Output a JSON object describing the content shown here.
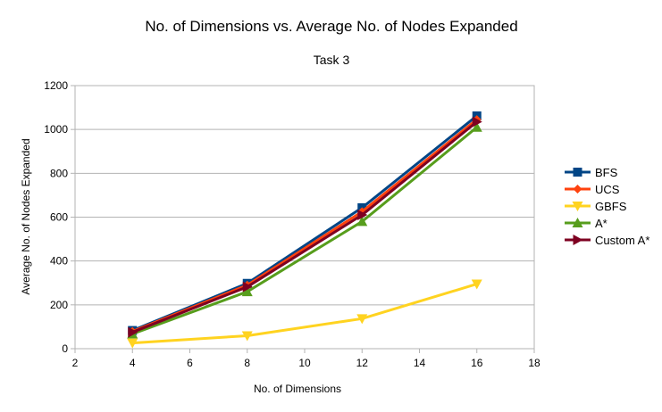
{
  "chart_data": {
    "type": "line",
    "title": "No. of Dimensions vs. Average No. of Nodes Expanded",
    "subtitle": "Task 3",
    "xlabel": "No. of Dimensions",
    "ylabel": "Average No. of Nodes Expanded",
    "xlim": [
      2,
      18
    ],
    "ylim": [
      0,
      1200
    ],
    "xticks": [
      2,
      4,
      6,
      8,
      10,
      12,
      14,
      16,
      18
    ],
    "yticks": [
      0,
      200,
      400,
      600,
      800,
      1000,
      1200
    ],
    "grid": "horizontal",
    "legend": "right",
    "x": [
      4,
      8,
      12,
      16
    ],
    "series": [
      {
        "name": "BFS",
        "values": [
          83,
          298,
          643,
          1062
        ],
        "color": "#004586",
        "marker": "square"
      },
      {
        "name": "UCS",
        "values": [
          79,
          290,
          625,
          1045
        ],
        "color": "#ff420e",
        "marker": "diamond"
      },
      {
        "name": "GBFS",
        "values": [
          26,
          59,
          137,
          295
        ],
        "color": "#ffd320",
        "marker": "triangle-down"
      },
      {
        "name": "A*",
        "values": [
          67,
          260,
          580,
          1010
        ],
        "color": "#579d1c",
        "marker": "triangle-up"
      },
      {
        "name": "Custom A*",
        "values": [
          75,
          282,
          610,
          1035
        ],
        "color": "#7e0021",
        "marker": "triangle-right"
      }
    ]
  }
}
